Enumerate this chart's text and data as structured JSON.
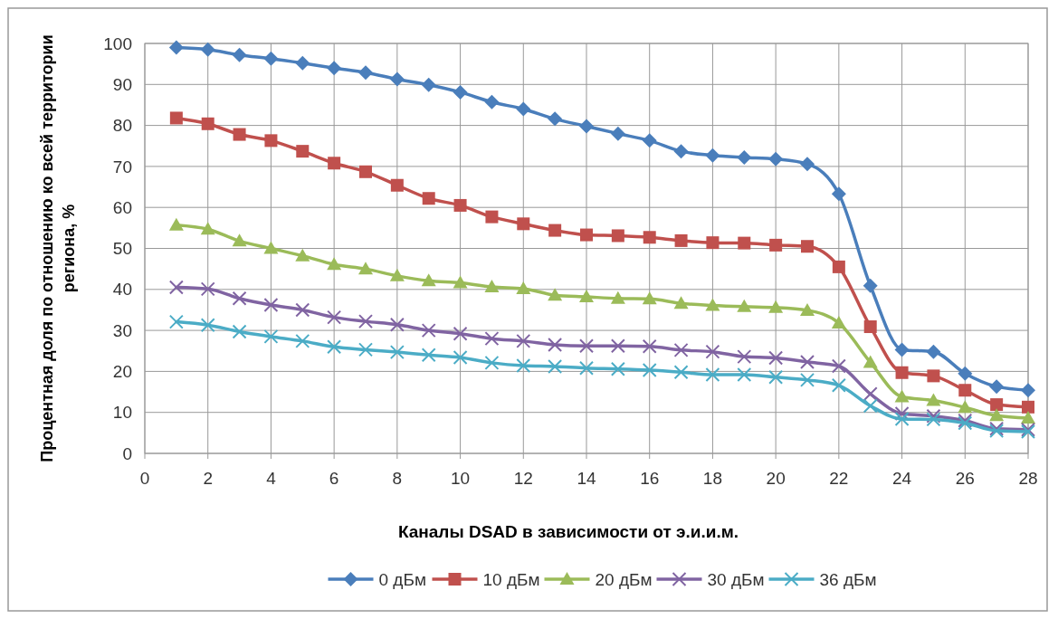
{
  "chart_data": {
    "type": "line",
    "xlabel": "Каналы DSAD в зависимости от э.и.и.м.",
    "ylabel": "Процентная доля по отношению ко всей территории региона, %",
    "x": [
      1,
      2,
      3,
      4,
      5,
      6,
      7,
      8,
      9,
      10,
      11,
      12,
      13,
      14,
      15,
      16,
      17,
      18,
      19,
      20,
      21,
      22,
      23,
      24,
      25,
      26,
      27,
      28
    ],
    "xlim": [
      0,
      28
    ],
    "xticks": [
      0,
      2,
      4,
      6,
      8,
      10,
      12,
      14,
      16,
      18,
      20,
      22,
      24,
      26,
      28
    ],
    "ylim": [
      0,
      100
    ],
    "yticks": [
      0,
      10,
      20,
      30,
      40,
      50,
      60,
      70,
      80,
      90,
      100
    ],
    "grid": true,
    "legend": "bottom",
    "series": [
      {
        "name": "0 дБм",
        "color": "#4a7ebb",
        "marker": "diamond",
        "values": [
          99,
          98.5,
          97.2,
          96.3,
          95.2,
          94,
          92.9,
          91.3,
          89.9,
          88.1,
          85.7,
          84,
          81.6,
          79.8,
          78,
          76.3,
          73.7,
          72.7,
          72.2,
          71.8,
          70.6,
          63.3,
          40.9,
          25.3,
          24.8,
          19.5,
          16.3,
          15.4
        ]
      },
      {
        "name": "10 дБм",
        "color": "#c0504d",
        "marker": "square",
        "values": [
          81.8,
          80.4,
          77.8,
          76.3,
          73.7,
          70.8,
          68.7,
          65.4,
          62.2,
          60.5,
          57.7,
          56,
          54.4,
          53.3,
          53.1,
          52.7,
          51.9,
          51.4,
          51.3,
          50.8,
          50.5,
          45.5,
          30.9,
          19.7,
          18.9,
          15.4,
          11.9,
          11.3
        ]
      },
      {
        "name": "20 дБм",
        "color": "#9bbb59",
        "marker": "triangle",
        "values": [
          55.7,
          54.7,
          51.8,
          50,
          48.2,
          46.1,
          45,
          43.3,
          42.1,
          41.6,
          40.6,
          40.2,
          38.6,
          38.2,
          37.8,
          37.7,
          36.6,
          36.1,
          35.8,
          35.6,
          34.9,
          31.8,
          22.2,
          13.8,
          12.9,
          11.2,
          9.2,
          8.6
        ]
      },
      {
        "name": "30 дБм",
        "color": "#8064a2",
        "marker": "cross",
        "values": [
          40.5,
          40.1,
          37.8,
          36.2,
          35,
          33.2,
          32.2,
          31.4,
          30,
          29.2,
          28,
          27.4,
          26.5,
          26.2,
          26.2,
          26.1,
          25.2,
          24.8,
          23.6,
          23.3,
          22.3,
          21.3,
          14.5,
          9.7,
          9.1,
          8,
          6,
          5.8
        ]
      },
      {
        "name": "36 дБм",
        "color": "#4bacc6",
        "marker": "cross",
        "values": [
          32.1,
          31.3,
          29.7,
          28.5,
          27.4,
          26,
          25.3,
          24.7,
          24,
          23.4,
          22.1,
          21.4,
          21.2,
          20.8,
          20.6,
          20.3,
          19.8,
          19.2,
          19.2,
          18.6,
          17.9,
          16.6,
          11.6,
          8.4,
          8.3,
          7.4,
          5.5,
          5.3
        ]
      }
    ]
  }
}
